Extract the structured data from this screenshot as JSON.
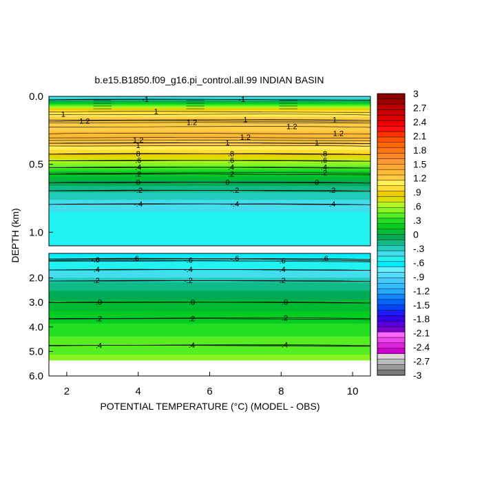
{
  "chart_data": {
    "type": "heatmap",
    "title": "b.e15.B1850.f09_g16.pi_control.all.99 INDIAN BASIN",
    "xlabel": "POTENTIAL TEMPERATURE (°C) (MODEL - OBS)",
    "ylabel": "DEPTH (km)",
    "x_ticks": [
      "2",
      "4",
      "6",
      "8",
      "10"
    ],
    "x_tick_values": [
      2,
      4,
      6,
      8,
      10
    ],
    "xlim": [
      1.5,
      10.5
    ],
    "upper_panel": {
      "ylim": [
        0.0,
        1.1
      ],
      "y_ticks": [
        "0.0",
        "0.5",
        "1.0"
      ],
      "y_tick_values": [
        0.0,
        0.5,
        1.0
      ],
      "profile": [
        {
          "depth": 0.0,
          "value": -0.5
        },
        {
          "depth": 0.03,
          "value": -0.2
        },
        {
          "depth": 0.06,
          "value": 0.3
        },
        {
          "depth": 0.1,
          "value": 0.9
        },
        {
          "depth": 0.16,
          "value": 1.2
        },
        {
          "depth": 0.3,
          "value": 1.3
        },
        {
          "depth": 0.36,
          "value": 1.2
        },
        {
          "depth": 0.4,
          "value": 1.0
        },
        {
          "depth": 0.44,
          "value": 0.8
        },
        {
          "depth": 0.5,
          "value": 0.5
        },
        {
          "depth": 0.56,
          "value": 0.2
        },
        {
          "depth": 0.62,
          "value": 0.0
        },
        {
          "depth": 0.69,
          "value": -0.2
        },
        {
          "depth": 0.79,
          "value": -0.4
        },
        {
          "depth": 0.88,
          "value": -0.5
        },
        {
          "depth": 1.1,
          "value": -0.5
        }
      ],
      "contour_labels": [
        {
          "text": "-1",
          "x": 4.2,
          "depth": 0.02
        },
        {
          "text": "-1",
          "x": 6.9,
          "depth": 0.02
        },
        {
          "text": "1",
          "x": 1.9,
          "depth": 0.13
        },
        {
          "text": "1",
          "x": 4.5,
          "depth": 0.11
        },
        {
          "text": "1",
          "x": 7.0,
          "depth": 0.17
        },
        {
          "text": "1",
          "x": 9.5,
          "depth": 0.17
        },
        {
          "text": "1.2",
          "x": 2.5,
          "depth": 0.18
        },
        {
          "text": "1.2",
          "x": 5.5,
          "depth": 0.19
        },
        {
          "text": "1.2",
          "x": 8.3,
          "depth": 0.22
        },
        {
          "text": "1.2",
          "x": 9.6,
          "depth": 0.27
        },
        {
          "text": "1.2",
          "x": 7.0,
          "depth": 0.3
        },
        {
          "text": "1",
          "x": 6.5,
          "depth": 0.34
        },
        {
          "text": "1",
          "x": 9.0,
          "depth": 0.34
        },
        {
          "text": "1.2",
          "x": 4.0,
          "depth": 0.32
        },
        {
          "text": "1",
          "x": 4.0,
          "depth": 0.36
        },
        {
          "text": "8",
          "x": 4.0,
          "depth": 0.42
        },
        {
          "text": ".8",
          "x": 6.6,
          "depth": 0.42
        },
        {
          "text": ".8",
          "x": 9.2,
          "depth": 0.42
        },
        {
          "text": ".6",
          "x": 4.0,
          "depth": 0.47
        },
        {
          "text": ".6",
          "x": 6.6,
          "depth": 0.47
        },
        {
          "text": ".6",
          "x": 9.2,
          "depth": 0.47
        },
        {
          "text": ".4",
          "x": 4.0,
          "depth": 0.52
        },
        {
          "text": ".4",
          "x": 6.6,
          "depth": 0.52
        },
        {
          "text": ".4",
          "x": 9.2,
          "depth": 0.52
        },
        {
          "text": ".2",
          "x": 4.0,
          "depth": 0.57
        },
        {
          "text": ".2",
          "x": 6.6,
          "depth": 0.57
        },
        {
          "text": ".2",
          "x": 9.2,
          "depth": 0.56
        },
        {
          "text": "0",
          "x": 4.0,
          "depth": 0.63
        },
        {
          "text": "0",
          "x": 6.5,
          "depth": 0.63
        },
        {
          "text": "0",
          "x": 9.0,
          "depth": 0.63
        },
        {
          "text": "-.2",
          "x": 4.0,
          "depth": 0.69
        },
        {
          "text": "-.2",
          "x": 6.7,
          "depth": 0.69
        },
        {
          "text": "-.2",
          "x": 9.4,
          "depth": 0.69
        },
        {
          "text": "-.4",
          "x": 4.0,
          "depth": 0.79
        },
        {
          "text": "-.4",
          "x": 6.7,
          "depth": 0.79
        },
        {
          "text": "-.4",
          "x": 9.4,
          "depth": 0.79
        }
      ]
    },
    "lower_panel": {
      "ylim": [
        1.0,
        6.0
      ],
      "y_ticks": [
        "2.0",
        "3.0",
        "4.0",
        "5.0",
        "6.0"
      ],
      "y_tick_values": [
        2.0,
        3.0,
        4.0,
        5.0,
        6.0
      ],
      "data_bottom_depth": 5.35,
      "profile": [
        {
          "depth": 1.0,
          "value": -0.6
        },
        {
          "depth": 1.35,
          "value": -0.55
        },
        {
          "depth": 1.6,
          "value": -0.5
        },
        {
          "depth": 1.9,
          "value": -0.4
        },
        {
          "depth": 2.25,
          "value": -0.2
        },
        {
          "depth": 2.9,
          "value": 0.0
        },
        {
          "depth": 3.7,
          "value": 0.2
        },
        {
          "depth": 4.4,
          "value": 0.35
        },
        {
          "depth": 4.8,
          "value": 0.4
        },
        {
          "depth": 5.35,
          "value": 0.5
        }
      ],
      "contour_labels": [
        {
          "text": "-.6",
          "x": 2.8,
          "depth": 1.25
        },
        {
          "text": "-.6",
          "x": 3.9,
          "depth": 1.2
        },
        {
          "text": "-.6",
          "x": 5.4,
          "depth": 1.27
        },
        {
          "text": "-.6",
          "x": 6.7,
          "depth": 1.2
        },
        {
          "text": "-.6",
          "x": 8.0,
          "depth": 1.3
        },
        {
          "text": "-.6",
          "x": 9.2,
          "depth": 1.2
        },
        {
          "text": "-.4",
          "x": 2.8,
          "depth": 1.65
        },
        {
          "text": "-.4",
          "x": 5.4,
          "depth": 1.65
        },
        {
          "text": "-.4",
          "x": 8.0,
          "depth": 1.65
        },
        {
          "text": "-.2",
          "x": 2.8,
          "depth": 2.1
        },
        {
          "text": "-.2",
          "x": 5.4,
          "depth": 2.1
        },
        {
          "text": "-.2",
          "x": 8.0,
          "depth": 2.1
        },
        {
          "text": ".0",
          "x": 2.9,
          "depth": 2.98
        },
        {
          "text": ".0",
          "x": 5.5,
          "depth": 2.98
        },
        {
          "text": ".0",
          "x": 8.1,
          "depth": 2.98
        },
        {
          "text": ".2",
          "x": 2.9,
          "depth": 3.65
        },
        {
          "text": ".2",
          "x": 5.5,
          "depth": 3.65
        },
        {
          "text": ".2",
          "x": 8.1,
          "depth": 3.62
        },
        {
          "text": ".4",
          "x": 2.9,
          "depth": 4.75
        },
        {
          "text": ".4",
          "x": 5.5,
          "depth": 4.73
        },
        {
          "text": ".4",
          "x": 8.1,
          "depth": 4.72
        }
      ]
    },
    "colorbar": {
      "labels": [
        "3",
        "2.7",
        "2.4",
        "2.1",
        "1.8",
        "1.5",
        "1.2",
        ".9",
        ".6",
        ".3",
        "0",
        "-.3",
        "-.6",
        "-.9",
        "-1.2",
        "-1.5",
        "-1.8",
        "-2.1",
        "-2.4",
        "-2.7",
        "-3"
      ],
      "label_values": [
        3,
        2.7,
        2.4,
        2.1,
        1.8,
        1.5,
        1.2,
        0.9,
        0.6,
        0.3,
        0,
        -0.3,
        -0.6,
        -0.9,
        -1.2,
        -1.5,
        -1.8,
        -2.1,
        -2.4,
        -2.7,
        -3
      ],
      "range": [
        -3,
        3
      ],
      "colors": [
        "#7a7a7a",
        "#9a9a9a",
        "#bbbbbb",
        "#d8d8d8",
        "#cc00cc",
        "#dd22dd",
        "#ee44ee",
        "#ff66ff",
        "#7700cc",
        "#5500dd",
        "#3300ee",
        "#1a1aff",
        "#0044ff",
        "#0066ff",
        "#1188ff",
        "#22aaff",
        "#33bbff",
        "#44ccff",
        "#55ddff",
        "#66eeff",
        "#00eeff",
        "#22f2f2",
        "#44ddee",
        "#22ccbb",
        "#11bb88",
        "#00aa55",
        "#00bb33",
        "#00cc22",
        "#22dd22",
        "#55ee22",
        "#88f522",
        "#b5f522",
        "#dddd00",
        "#eecc00",
        "#ffdd33",
        "#ffee55",
        "#ffcc44",
        "#ffbb33",
        "#ffaa33",
        "#ff9933",
        "#ff8822",
        "#ff7711",
        "#ff6600",
        "#ff5500",
        "#ff3300",
        "#ff1111",
        "#ee0000",
        "#dd0000",
        "#cc0000",
        "#bb0000",
        "#a00000",
        "#880000"
      ]
    }
  }
}
